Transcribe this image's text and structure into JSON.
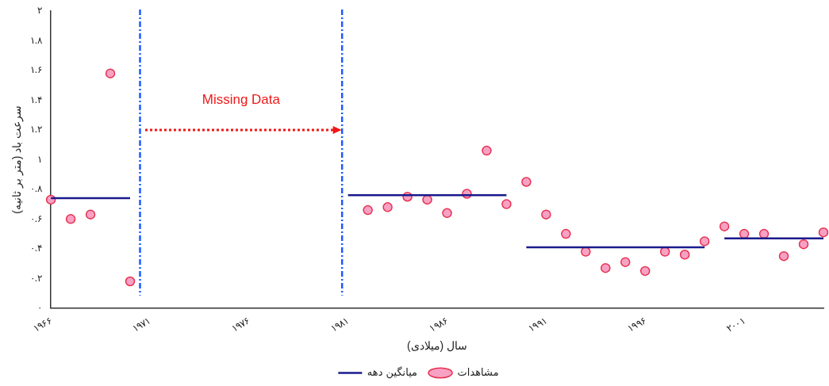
{
  "chart_data": {
    "type": "scatter",
    "xlabel": "سال (میلادی)",
    "ylabel": "سرعت باد (متر بر ثانیه)",
    "xlim": [
      1966,
      2005
    ],
    "ylim": [
      0,
      2
    ],
    "xticks": [
      {
        "value": 1966,
        "label": "۱۹۶۶"
      },
      {
        "value": 1971,
        "label": "۱۹۷۱"
      },
      {
        "value": 1976,
        "label": "۱۹۷۶"
      },
      {
        "value": 1981,
        "label": "۱۹۸۱"
      },
      {
        "value": 1986,
        "label": "۱۹۸۶"
      },
      {
        "value": 1991,
        "label": "۱۹۹۱"
      },
      {
        "value": 1996,
        "label": "۱۹۹۶"
      },
      {
        "value": 2001,
        "label": "۲۰۰۱"
      }
    ],
    "yticks": [
      {
        "value": 0,
        "label": "۰"
      },
      {
        "value": 0.2,
        "label": "۰.۲"
      },
      {
        "value": 0.4,
        "label": "۰.۴"
      },
      {
        "value": 0.6,
        "label": "۰.۶"
      },
      {
        "value": 0.8,
        "label": "۰.۸"
      },
      {
        "value": 1,
        "label": "۱"
      },
      {
        "value": 1.2,
        "label": "۱.۲"
      },
      {
        "value": 1.4,
        "label": "۱.۴"
      },
      {
        "value": 1.6,
        "label": "۱.۶"
      },
      {
        "value": 1.8,
        "label": "۱.۸"
      },
      {
        "value": 2,
        "label": "۲"
      }
    ],
    "series": [
      {
        "name": "میانگین دهه",
        "type": "line",
        "color": "#1a1a8c",
        "marker": "none",
        "x": [
          1966,
          1970,
          null,
          1981,
          1989,
          null,
          1990,
          1999,
          null,
          2000,
          2005
        ],
        "values": [
          0.74,
          0.74,
          null,
          0.76,
          0.76,
          null,
          0.41,
          0.41,
          null,
          0.47,
          0.47
        ]
      },
      {
        "name": "مشاهدات",
        "type": "scatter",
        "color": "#f7a1c4",
        "marker": "circle",
        "x": [
          1966,
          1967,
          1968,
          1969,
          1970,
          1982,
          1983,
          1984,
          1985,
          1986,
          1987,
          1988,
          1989,
          1990,
          1991,
          1992,
          1993,
          1994,
          1995,
          1996,
          1997,
          1998,
          1999,
          2000,
          2001,
          2002,
          2003,
          2004,
          2005
        ],
        "values": [
          0.73,
          0.6,
          0.63,
          1.58,
          0.18,
          0.66,
          0.68,
          0.75,
          0.73,
          0.64,
          0.77,
          1.06,
          0.7,
          0.85,
          0.63,
          0.5,
          0.38,
          0.27,
          0.31,
          0.25,
          0.38,
          0.36,
          0.45,
          0.55,
          0.5,
          0.5,
          0.35,
          0.43,
          0.51
        ]
      }
    ],
    "ref_lines": [
      {
        "axis": "x",
        "value": 1970.5,
        "color": "#1a5cff",
        "line_style": "dashed"
      },
      {
        "axis": "x",
        "value": 1980.7,
        "color": "#1a5cff",
        "line_style": "dashed"
      }
    ],
    "annotations": [
      "Missing Data"
    ],
    "grid": false,
    "legend": "bottom"
  }
}
